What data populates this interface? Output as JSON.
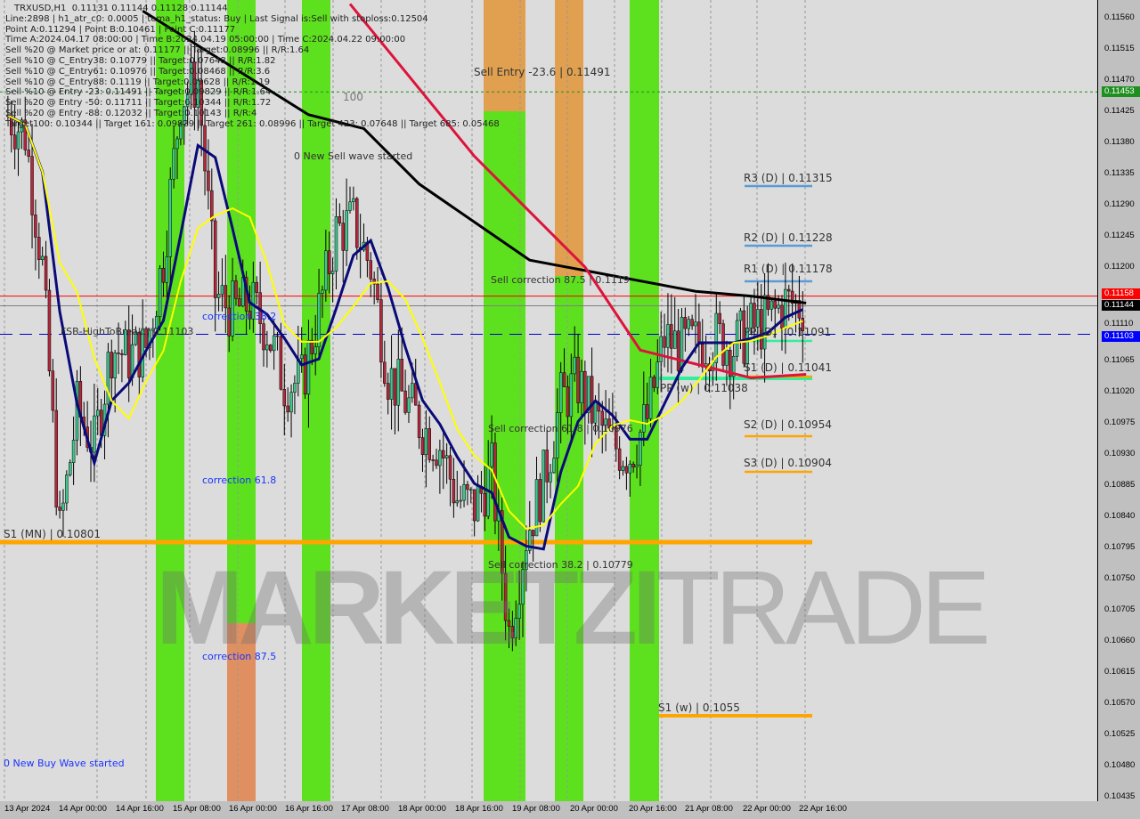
{
  "header": {
    "symbol_line": "TRXUSD,H1  0.11131 0.11144 0.11128 0.11144",
    "info_lines": [
      "Line:2898 | h1_atr_c0: 0.0005 | tema_h1_status: Buy | Last Signal is:Sell with stoploss:0.12504",
      "Point A:0.11294 | Point B:0.10461 | Point C:0.11177",
      "Time A:2024.04.17 08:00:00 | Time B:2024.04.19 05:00:00 | Time C:2024.04.22 09:00:00",
      "Sell %20 @ Market price or at: 0.11177 || Target:0.08996 || R/R:1.64",
      "Sell %10 @ C_Entry38: 0.10779 || Target:0.07648 || R/R:1.82",
      "Sell %10 @ C_Entry61: 0.10976 || Target:0.08468 || R/R:3.6",
      "Sell %10 @ C_Entry88: 0.1119 || Target:0.09628 || R/R:1.19",
      "Sell %10 @ Entry -23: 0.11491 || Target:0.09829 || R/R:1.64",
      "Sell %20 @ Entry -50: 0.11711 || Target:0.10344 || R/R:1.72",
      "Sell %20 @ Entry -88: 0.12032 || Target:0.10143 || R/R:4",
      "Target100: 0.10344 || Target 161: 0.09829 || Target 261: 0.08996 || Target 423: 0.07648 || Target 685: 0.05468"
    ]
  },
  "annotations": {
    "sell_entry": "Sell Entry -23.6 | 0.11491",
    "new_sell_wave": "0 New Sell wave started",
    "sell_corr_875": "Sell correction 87.5 | 0.1119",
    "sell_corr_618": "Sell correction 61.8 | 0.10976",
    "sell_corr_382": "Sell correction 38.2 | 0.10779",
    "corr_382": "correction 38.2",
    "corr_618": "correction 61.8",
    "corr_875": "correction 87.5",
    "fsb": "FSB-HighToBreak | 0.11103",
    "new_buy_wave": "0 New Buy Wave started",
    "s1_mn": "S1 (MN) | 0.10801",
    "s1_w": "S1 (w) | 0.1055",
    "pp_w": "PP (w) | 0.11038",
    "r3_d": "R3 (D) | 0.11315",
    "r2_d": "R2 (D) | 0.11228",
    "r1_d": "R1 (D) | 0.11178",
    "pp_d": "PP (D) | 0.11091",
    "s1_d": "S1 (D) | 0.11041",
    "s2_d": "S2 (D) | 0.10954",
    "s3_d": "S3 (D) | 0.10904",
    "hundred": "100",
    "watermark_bold": "MARKETZI",
    "watermark_light": "TRADE"
  },
  "price_boxes": [
    {
      "value": "0.11453",
      "color": "#1f8f1f"
    },
    {
      "value": "0.11158",
      "color": "#ff0000"
    },
    {
      "value": "0.11144",
      "color": "#000000"
    },
    {
      "value": "0.11103",
      "color": "#0000ff"
    }
  ],
  "colors": {
    "bull": "#3cc88c",
    "bear": "#b4283c",
    "green_zone": "#5de01e",
    "orange_zone": "#e0a050",
    "ma_long": "#000000",
    "ma_mid": "#dc143c",
    "ma_fast": "#0a0a78",
    "signal": "#ffff00",
    "pivot_blue": "#5b9bd5",
    "pivot_orange": "#ffa500",
    "pivot_green": "#33ee99"
  },
  "chart_data": {
    "type": "candlestick",
    "title": "TRXUSD,H1",
    "ylim": [
      0.10435,
      0.1158
    ],
    "y_ticks": [
      "0.11560",
      "0.11515",
      "0.11470",
      "0.11425",
      "0.11380",
      "0.11335",
      "0.11290",
      "0.11245",
      "0.11200",
      "0.11110",
      "0.11065",
      "0.11020",
      "0.10975",
      "0.10930",
      "0.10885",
      "0.10840",
      "0.10795",
      "0.10750",
      "0.10705",
      "0.10660",
      "0.10615",
      "0.10570",
      "0.10525",
      "0.10480",
      "0.10435"
    ],
    "x_ticks": [
      "13 Apr 2024",
      "14 Apr 00:00",
      "14 Apr 16:00",
      "15 Apr 08:00",
      "16 Apr 00:00",
      "16 Apr 16:00",
      "17 Apr 08:00",
      "18 Apr 00:00",
      "18 Apr 16:00",
      "19 Apr 08:00",
      "20 Apr 00:00",
      "20 Apr 16:00",
      "21 Apr 08:00",
      "22 Apr 00:00",
      "22 Apr 16:00"
    ],
    "approx_close": {
      "time": [
        "13 Apr 01:00",
        "13 Apr 06:00",
        "13 Apr 11:00",
        "13 Apr 16:00",
        "13 Apr 21:00",
        "14 Apr 02:00",
        "14 Apr 07:00",
        "14 Apr 12:00",
        "14 Apr 17:00",
        "14 Apr 22:00",
        "15 Apr 03:00",
        "15 Apr 08:00",
        "15 Apr 13:00",
        "15 Apr 18:00",
        "15 Apr 23:00",
        "16 Apr 04:00",
        "16 Apr 09:00",
        "16 Apr 14:00",
        "16 Apr 19:00",
        "17 Apr 00:00",
        "17 Apr 05:00",
        "17 Apr 10:00",
        "17 Apr 15:00",
        "17 Apr 20:00",
        "18 Apr 01:00",
        "18 Apr 06:00",
        "18 Apr 11:00",
        "18 Apr 16:00",
        "18 Apr 21:00",
        "19 Apr 02:00",
        "19 Apr 07:00",
        "19 Apr 12:00",
        "19 Apr 17:00",
        "19 Apr 22:00",
        "20 Apr 03:00",
        "20 Apr 08:00",
        "20 Apr 13:00",
        "20 Apr 18:00",
        "20 Apr 23:00",
        "21 Apr 04:00",
        "21 Apr 09:00",
        "21 Apr 14:00",
        "21 Apr 19:00",
        "22 Apr 00:00",
        "22 Apr 05:00",
        "22 Apr 10:00",
        "22 Apr 15:00"
      ],
      "price": [
        0.11419,
        0.11393,
        0.112,
        0.10814,
        0.10994,
        0.10943,
        0.11084,
        0.11071,
        0.11084,
        0.11213,
        0.11444,
        0.1147,
        0.11161,
        0.11136,
        0.11149,
        0.1111,
        0.11033,
        0.11033,
        0.11136,
        0.11251,
        0.11264,
        0.112,
        0.11046,
        0.11007,
        0.10969,
        0.10943,
        0.10866,
        0.10853,
        0.10904,
        0.10673,
        0.10814,
        0.10891,
        0.11007,
        0.11033,
        0.10981,
        0.10943,
        0.1093,
        0.10981,
        0.11097,
        0.11084,
        0.11091,
        0.11097,
        0.11084,
        0.1111,
        0.11123,
        0.11149,
        0.11144
      ]
    },
    "ma_long": {
      "time": [
        "14 Apr 16:00",
        "16 Apr 16:00",
        "17 Apr 08:00",
        "18 Apr 00:00",
        "19 Apr 08:00",
        "20 Apr 00:00",
        "21 Apr 08:00",
        "22 Apr 00:00",
        "22 Apr 16:00"
      ],
      "price": [
        0.1157,
        0.1142,
        0.114,
        0.1132,
        0.1121,
        0.11195,
        0.11165,
        0.11158,
        0.11148
      ]
    },
    "ma_mid": {
      "time": [
        "17 Apr 04:00",
        "18 Apr 16:00",
        "19 Apr 08:00",
        "20 Apr 00:00",
        "20 Apr 16:00",
        "21 Apr 08:00",
        "22 Apr 00:00",
        "22 Apr 16:00"
      ],
      "price": [
        0.1158,
        0.1136,
        0.1128,
        0.112,
        0.1108,
        0.1106,
        0.1104,
        0.11045
      ]
    },
    "levels": [
      {
        "name": "resistance",
        "price": 0.11158,
        "color": "#ff0000"
      },
      {
        "name": "current",
        "price": 0.11144,
        "color": "#808080"
      },
      {
        "name": "fsb",
        "price": 0.11103,
        "color": "#0000cc"
      },
      {
        "name": "sell-entry",
        "price": 0.11453,
        "color": "#1f8f1f"
      },
      {
        "name": "s1-mn",
        "price": 0.10801,
        "color": "#ffa500"
      }
    ]
  }
}
